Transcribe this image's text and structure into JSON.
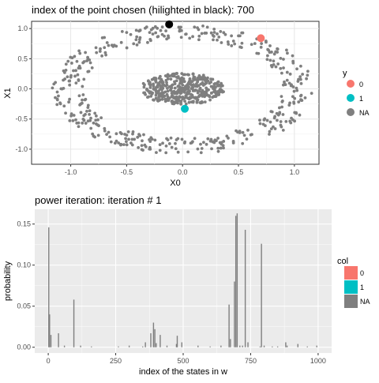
{
  "chart_data": [
    {
      "type": "scatter",
      "title": "index of the point chosen (hilighted in black): 700",
      "xlabel": "X0",
      "ylabel": "X1",
      "xlim": [
        -1.35,
        1.22
      ],
      "ylim": [
        -1.25,
        1.12
      ],
      "xticks": [
        -1.0,
        -0.5,
        0.0,
        0.5,
        1.0
      ],
      "xtick_labels": [
        "-1.0",
        "-0.5",
        "0.0",
        "0.5",
        "1.0"
      ],
      "yticks": [
        -1.0,
        -0.5,
        0.0,
        0.5,
        1.0
      ],
      "ytick_labels": [
        "-1.0",
        "-0.5",
        "0.0",
        "0.5",
        "1.0"
      ],
      "grid": true,
      "legend": {
        "title": "y",
        "placement": "right",
        "entries": [
          {
            "label": "0",
            "color": "#F8766D"
          },
          {
            "label": "1",
            "color": "#00BFC4"
          },
          {
            "label": "NA",
            "color": "#7F7F7F"
          }
        ]
      },
      "distribution_note_values": {
        "outer_ring_radius_min": 0.82,
        "outer_ring_radius_max": 1.08,
        "inner_blob_rx": 0.38,
        "inner_blob_ry": 0.26
      },
      "highlighted_points": [
        {
          "label": "0",
          "x": 0.7,
          "y": 0.84,
          "color": "#F8766D"
        },
        {
          "label": "1",
          "x": 0.02,
          "y": -0.33,
          "color": "#00BFC4"
        },
        {
          "label": "chosen",
          "x": -0.12,
          "y": 1.07,
          "color": "#000000"
        }
      ]
    },
    {
      "type": "bar",
      "title": "power iteration: iteration # 1",
      "xlabel": "index of the states in w",
      "ylabel": "probability",
      "xlim": [
        -50,
        1050
      ],
      "ylim": [
        -0.007,
        0.168
      ],
      "xticks": [
        0,
        250,
        500,
        750,
        1000
      ],
      "xtick_labels": [
        "0",
        "250",
        "500",
        "750",
        "1000"
      ],
      "yticks": [
        0.0,
        0.05,
        0.1,
        0.15
      ],
      "ytick_labels": [
        "0.00",
        "0.05",
        "0.10",
        "0.15"
      ],
      "grid": true,
      "legend": {
        "title": "col",
        "placement": "right",
        "entries": [
          {
            "label": "0",
            "color": "#F8766D"
          },
          {
            "label": "1",
            "color": "#00BFC4"
          },
          {
            "label": "NA",
            "color": "#7F7F7F"
          }
        ]
      },
      "bars": [
        {
          "x": 2,
          "y": 0.146
        },
        {
          "x": 5,
          "y": 0.04
        },
        {
          "x": 10,
          "y": 0.015
        },
        {
          "x": 38,
          "y": 0.017
        },
        {
          "x": 60,
          "y": 0.002
        },
        {
          "x": 95,
          "y": 0.058
        },
        {
          "x": 120,
          "y": 0.002
        },
        {
          "x": 160,
          "y": 0.001
        },
        {
          "x": 260,
          "y": 0.001
        },
        {
          "x": 300,
          "y": 0.002
        },
        {
          "x": 350,
          "y": 0.001
        },
        {
          "x": 360,
          "y": 0.006
        },
        {
          "x": 380,
          "y": 0.017
        },
        {
          "x": 390,
          "y": 0.03
        },
        {
          "x": 395,
          "y": 0.022
        },
        {
          "x": 400,
          "y": 0.005
        },
        {
          "x": 415,
          "y": 0.015
        },
        {
          "x": 440,
          "y": 0.002
        },
        {
          "x": 475,
          "y": 0.004
        },
        {
          "x": 478,
          "y": 0.014
        },
        {
          "x": 495,
          "y": 0.006
        },
        {
          "x": 555,
          "y": 0.002
        },
        {
          "x": 600,
          "y": 0.001
        },
        {
          "x": 640,
          "y": 0.002
        },
        {
          "x": 670,
          "y": 0.052
        },
        {
          "x": 675,
          "y": 0.01
        },
        {
          "x": 690,
          "y": 0.08
        },
        {
          "x": 695,
          "y": 0.16
        },
        {
          "x": 700,
          "y": 0.163
        },
        {
          "x": 710,
          "y": 0.002
        },
        {
          "x": 720,
          "y": 0.002
        },
        {
          "x": 730,
          "y": 0.143
        },
        {
          "x": 740,
          "y": 0.006
        },
        {
          "x": 785,
          "y": 0.001
        },
        {
          "x": 790,
          "y": 0.126
        },
        {
          "x": 800,
          "y": 0.002
        },
        {
          "x": 830,
          "y": 0.001
        },
        {
          "x": 850,
          "y": 0.001
        },
        {
          "x": 880,
          "y": 0.006
        },
        {
          "x": 885,
          "y": 0.002
        },
        {
          "x": 925,
          "y": 0.004
        },
        {
          "x": 960,
          "y": 0.001
        },
        {
          "x": 995,
          "y": 0.002
        }
      ]
    }
  ]
}
